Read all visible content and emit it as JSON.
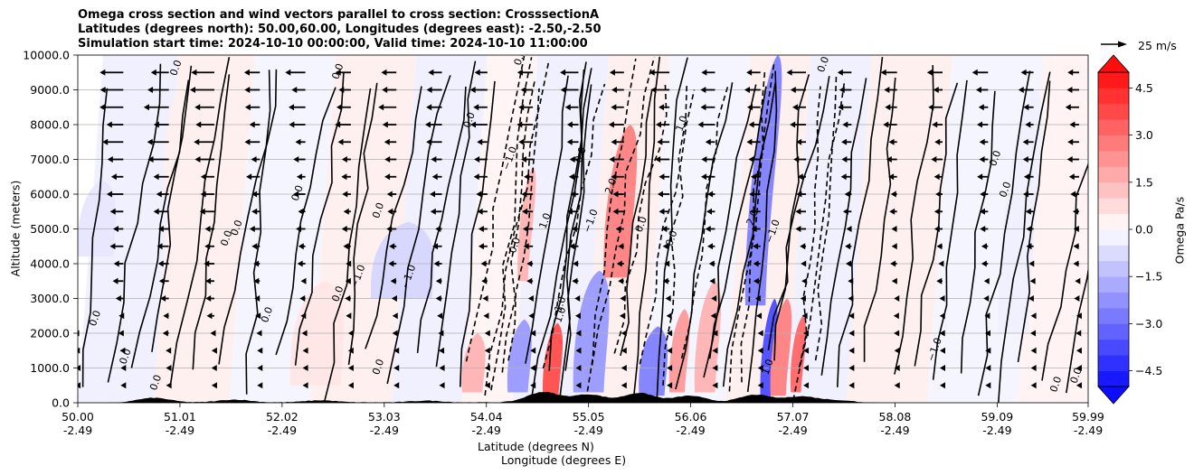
{
  "chart_data": {
    "type": "heatmap",
    "subtype": "filled contour cross-section with line contours and wind vectors",
    "title_lines": [
      "Omega cross section and wind vectors parallel to cross section: CrosssectionA",
      "Latitudes (degrees north): 50.00,60.00, Longitudes (degrees east): -2.50,-2.50",
      "Simulation start time: 2024-10-10 00:00:00, Valid time: 2024-10-10 11:00:00"
    ],
    "xlabel_line1": "Latitude (degrees N)",
    "xlabel_line2": "Longitude (degrees E)",
    "ylabel": "Altitude (meters)",
    "xlim": [
      50.0,
      59.99
    ],
    "ylim": [
      0,
      10000
    ],
    "x_ticks": [
      {
        "value": 50.0,
        "lat": "50.00",
        "lon": "-2.49"
      },
      {
        "value": 51.01,
        "lat": "51.01",
        "lon": "-2.49"
      },
      {
        "value": 52.02,
        "lat": "52.02",
        "lon": "-2.49"
      },
      {
        "value": 53.03,
        "lat": "53.03",
        "lon": "-2.49"
      },
      {
        "value": 54.04,
        "lat": "54.04",
        "lon": "-2.49"
      },
      {
        "value": 55.05,
        "lat": "55.05",
        "lon": "-2.49"
      },
      {
        "value": 56.06,
        "lat": "56.06",
        "lon": "-2.49"
      },
      {
        "value": 57.07,
        "lat": "57.07",
        "lon": "-2.49"
      },
      {
        "value": 58.08,
        "lat": "58.08",
        "lon": "-2.49"
      },
      {
        "value": 59.09,
        "lat": "59.09",
        "lon": "-2.49"
      },
      {
        "value": 59.99,
        "lat": "59.99",
        "lon": "-2.49"
      }
    ],
    "y_ticks": [
      {
        "value": 0,
        "label": "0.0"
      },
      {
        "value": 1000,
        "label": "1000.0"
      },
      {
        "value": 2000,
        "label": "2000.0"
      },
      {
        "value": 3000,
        "label": "3000.0"
      },
      {
        "value": 4000,
        "label": "4000.0"
      },
      {
        "value": 5000,
        "label": "5000.0"
      },
      {
        "value": 6000,
        "label": "6000.0"
      },
      {
        "value": 7000,
        "label": "7000.0"
      },
      {
        "value": 8000,
        "label": "8000.0"
      },
      {
        "value": 9000,
        "label": "9000.0"
      },
      {
        "value": 10000,
        "label": "10000.0"
      }
    ],
    "grid": "horizontal",
    "colorbar": {
      "label": "Omega Pa/s",
      "range": [
        -5.0,
        5.0
      ],
      "levels_step": 0.5,
      "extend": "both",
      "ticks": [
        {
          "value": 4.5,
          "label": "4.5"
        },
        {
          "value": 3.0,
          "label": "3.0"
        },
        {
          "value": 1.5,
          "label": "1.5"
        },
        {
          "value": 0.0,
          "label": "0.0"
        },
        {
          "value": -1.5,
          "label": "−1.5"
        },
        {
          "value": -3.0,
          "label": "−3.0"
        },
        {
          "value": -4.5,
          "label": "−4.5"
        }
      ]
    },
    "quiver_key": {
      "speed": 25,
      "label": "25 m/s"
    },
    "omega_regions": [
      {
        "lat": [
          50.0,
          50.35
        ],
        "alt": [
          4200,
          6400
        ],
        "omega": -0.5
      },
      {
        "lat": [
          50.85,
          51.35
        ],
        "alt": [
          6000,
          10000
        ],
        "omega": 0.3
      },
      {
        "lat": [
          52.1,
          52.6
        ],
        "alt": [
          500,
          3500
        ],
        "omega": 0.5
      },
      {
        "lat": [
          52.9,
          53.5
        ],
        "alt": [
          3000,
          5200
        ],
        "omega": -0.8
      },
      {
        "lat": [
          53.8,
          54.0
        ],
        "alt": [
          300,
          2000
        ],
        "omega": 1.5
      },
      {
        "lat": [
          54.25,
          54.45
        ],
        "alt": [
          300,
          2400
        ],
        "omega": -2.0
      },
      {
        "lat": [
          54.35,
          54.45
        ],
        "alt": [
          3500,
          6800
        ],
        "omega": 1.5
      },
      {
        "lat": [
          54.6,
          54.75
        ],
        "alt": [
          100,
          2300
        ],
        "omega": 3.5
      },
      {
        "lat": [
          54.9,
          55.2
        ],
        "alt": [
          300,
          3800
        ],
        "omega": -2.0
      },
      {
        "lat": [
          55.2,
          55.45
        ],
        "alt": [
          3600,
          8000
        ],
        "omega": 2.5
      },
      {
        "lat": [
          55.55,
          55.8
        ],
        "alt": [
          200,
          2200
        ],
        "omega": -2.5
      },
      {
        "lat": [
          55.85,
          56.0
        ],
        "alt": [
          300,
          2700
        ],
        "omega": 2.0
      },
      {
        "lat": [
          56.1,
          56.3
        ],
        "alt": [
          300,
          3500
        ],
        "omega": 1.5
      },
      {
        "lat": [
          56.6,
          56.8
        ],
        "alt": [
          2800,
          10000
        ],
        "omega": -2.5
      },
      {
        "lat": [
          56.75,
          56.85
        ],
        "alt": [
          100,
          3000
        ],
        "omega": -3.5
      },
      {
        "lat": [
          56.85,
          57.0
        ],
        "alt": [
          200,
          3000
        ],
        "omega": 2.5
      },
      {
        "lat": [
          57.05,
          57.15
        ],
        "alt": [
          300,
          2500
        ],
        "omega": 3.0
      },
      {
        "lat": [
          59.1,
          59.4
        ],
        "alt": [
          2000,
          9000
        ],
        "omega": -0.3
      }
    ],
    "contour_labels": [
      {
        "lat": 50.2,
        "alt": 2400,
        "text": "0.0"
      },
      {
        "lat": 50.5,
        "alt": 1300,
        "text": "0.0"
      },
      {
        "lat": 50.8,
        "alt": 550,
        "text": "0.0"
      },
      {
        "lat": 51.0,
        "alt": 9600,
        "text": "0.0"
      },
      {
        "lat": 51.5,
        "alt": 4700,
        "text": "0.0"
      },
      {
        "lat": 51.6,
        "alt": 5000,
        "text": "0.0"
      },
      {
        "lat": 51.9,
        "alt": 2500,
        "text": "0.0"
      },
      {
        "lat": 52.2,
        "alt": 6000,
        "text": "0.0"
      },
      {
        "lat": 52.6,
        "alt": 3100,
        "text": "0.0"
      },
      {
        "lat": 52.6,
        "alt": 9500,
        "text": "0.0"
      },
      {
        "lat": 52.8,
        "alt": 3600,
        "text": "−1.0"
      },
      {
        "lat": 53.0,
        "alt": 5500,
        "text": "0.0"
      },
      {
        "lat": 53.0,
        "alt": 1000,
        "text": "0.0"
      },
      {
        "lat": 53.3,
        "alt": 3600,
        "text": "−1.0"
      },
      {
        "lat": 53.9,
        "alt": 8100,
        "text": "0.0"
      },
      {
        "lat": 54.3,
        "alt": 7000,
        "text": "−1.0"
      },
      {
        "lat": 54.35,
        "alt": 4500,
        "text": "0.0"
      },
      {
        "lat": 54.4,
        "alt": 9900,
        "text": "0.0"
      },
      {
        "lat": 54.8,
        "alt": 2800,
        "text": "1.0"
      },
      {
        "lat": 54.8,
        "alt": 2500,
        "text": "1.0"
      },
      {
        "lat": 54.65,
        "alt": 5200,
        "text": "1.0"
      },
      {
        "lat": 55.0,
        "alt": 7100,
        "text": "0.0"
      },
      {
        "lat": 55.1,
        "alt": 5200,
        "text": "−1.0"
      },
      {
        "lat": 55.3,
        "alt": 6200,
        "text": "2.0"
      },
      {
        "lat": 55.6,
        "alt": 5100,
        "text": "0.0"
      },
      {
        "lat": 55.9,
        "alt": 4700,
        "text": "0.0"
      },
      {
        "lat": 56.0,
        "alt": 8000,
        "text": "1.0"
      },
      {
        "lat": 56.7,
        "alt": 5300,
        "text": "2.0"
      },
      {
        "lat": 56.9,
        "alt": 4900,
        "text": "−1.0"
      },
      {
        "lat": 56.85,
        "alt": 1000,
        "text": "1.0"
      },
      {
        "lat": 57.4,
        "alt": 9700,
        "text": "0.0"
      },
      {
        "lat": 58.5,
        "alt": 1500,
        "text": "−1.0"
      },
      {
        "lat": 59.1,
        "alt": 7000,
        "text": "0.0"
      },
      {
        "lat": 59.2,
        "alt": 6100,
        "text": "0.0"
      },
      {
        "lat": 59.7,
        "alt": 500,
        "text": "0.0"
      },
      {
        "lat": 59.9,
        "alt": 750,
        "text": "0.0"
      }
    ],
    "terrain_peaks": [
      {
        "lat": 50.75,
        "height": 130
      },
      {
        "lat": 51.55,
        "height": 80
      },
      {
        "lat": 52.4,
        "height": 60
      },
      {
        "lat": 53.45,
        "height": 50
      },
      {
        "lat": 54.6,
        "height": 300
      },
      {
        "lat": 55.05,
        "height": 230
      },
      {
        "lat": 55.55,
        "height": 270
      },
      {
        "lat": 56.05,
        "height": 190
      },
      {
        "lat": 56.7,
        "height": 220
      },
      {
        "lat": 57.15,
        "height": 170
      },
      {
        "lat": 57.5,
        "height": 60
      }
    ]
  }
}
